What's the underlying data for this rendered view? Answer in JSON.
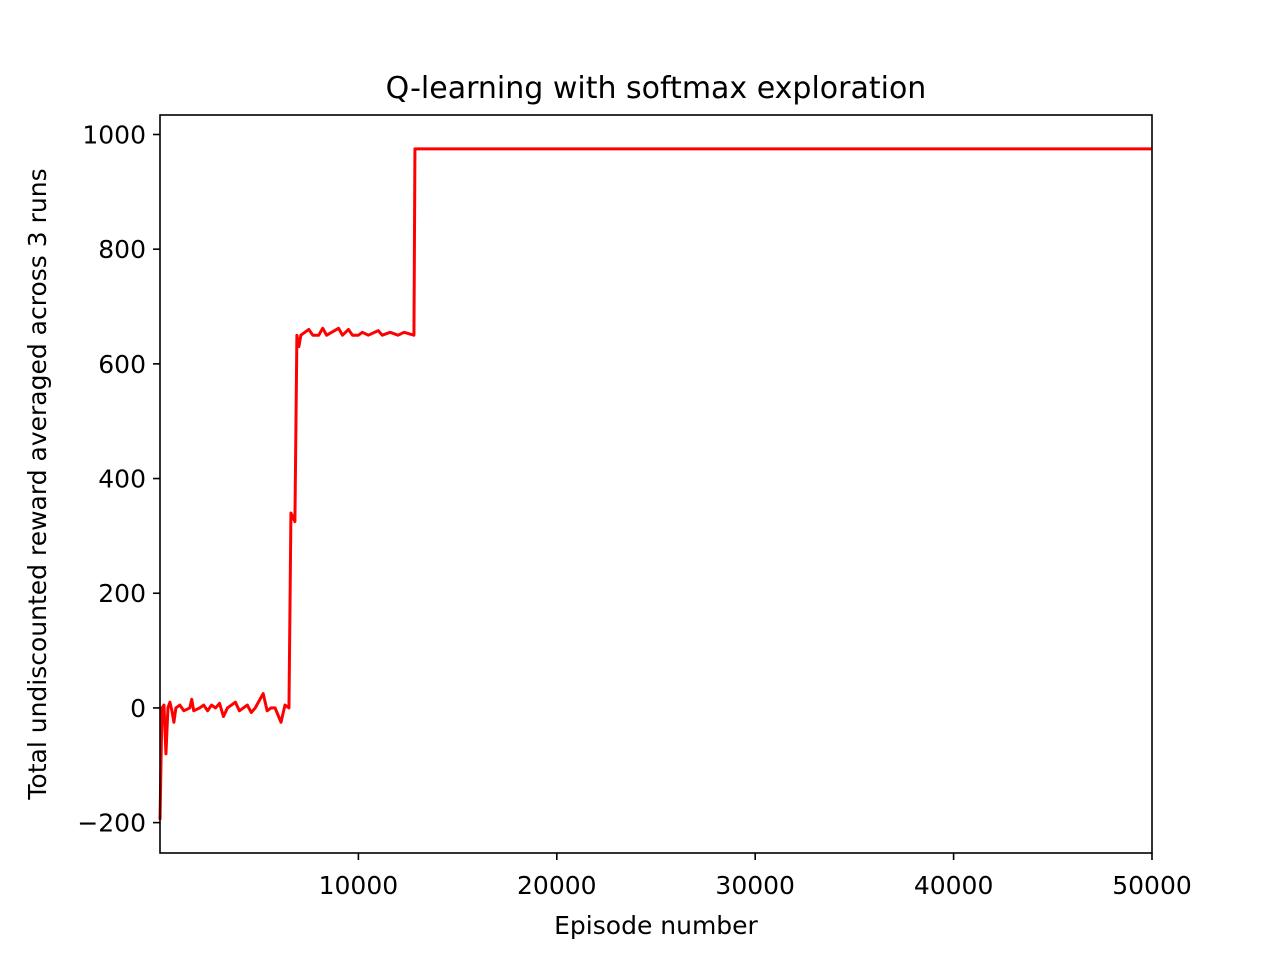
{
  "chart_data": {
    "type": "line",
    "title": "Q-learning with softmax exploration",
    "x_label": "Episode number",
    "y_label": "Total undiscounted reward averaged across 3 runs",
    "x": [
      0,
      100,
      200,
      300,
      400,
      500,
      600,
      700,
      800,
      1000,
      1200,
      1500,
      1600,
      1700,
      2000,
      2200,
      2400,
      2600,
      2800,
      3000,
      3200,
      3400,
      3600,
      3800,
      4000,
      4200,
      4400,
      4600,
      4800,
      5200,
      5400,
      5600,
      5800,
      6100,
      6300,
      6500,
      6600,
      6800,
      6900,
      7000,
      7100,
      7500,
      7700,
      8000,
      8200,
      8400,
      9000,
      9200,
      9500,
      9700,
      10000,
      10200,
      10500,
      11000,
      11200,
      11600,
      12000,
      12300,
      12800,
      12850,
      50000
    ],
    "series": [
      {
        "color": "#ff0000",
        "values": [
          -195,
          0,
          5,
          -80,
          0,
          10,
          -5,
          -25,
          0,
          5,
          -5,
          0,
          15,
          -5,
          0,
          5,
          -5,
          5,
          0,
          8,
          -15,
          0,
          5,
          10,
          -5,
          0,
          5,
          -8,
          0,
          25,
          -5,
          0,
          0,
          -25,
          5,
          0,
          340,
          325,
          650,
          630,
          650,
          660,
          650,
          650,
          662,
          650,
          662,
          650,
          660,
          650,
          650,
          655,
          650,
          658,
          650,
          655,
          650,
          655,
          650,
          975,
          975
        ]
      }
    ],
    "xlim": [
      0,
      50000
    ],
    "xticks": [
      10000,
      20000,
      30000,
      40000,
      50000
    ],
    "ylim": [
      -253,
      1034
    ],
    "yticks": [
      {
        "value": -200,
        "label": "−200"
      },
      0,
      200,
      400,
      600,
      800,
      1000
    ]
  }
}
